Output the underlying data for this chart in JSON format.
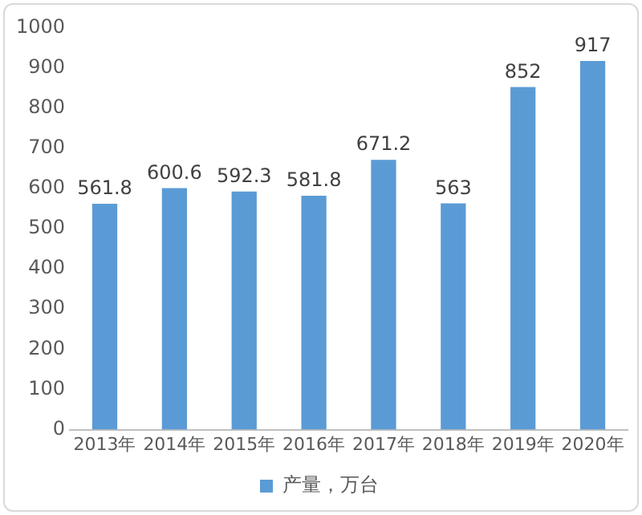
{
  "chart_data": {
    "type": "bar",
    "categories": [
      "2013年",
      "2014年",
      "2015年",
      "2016年",
      "2017年",
      "2018年",
      "2019年",
      "2020年"
    ],
    "series": [
      {
        "name": "产量，万台",
        "color": "#5b9bd5",
        "values": [
          561.8,
          600.6,
          592.3,
          581.8,
          671.2,
          563,
          852,
          917
        ]
      }
    ],
    "ylim": [
      0,
      1000
    ],
    "yticks": [
      0,
      100,
      200,
      300,
      400,
      500,
      600,
      700,
      800,
      900,
      1000
    ],
    "grid": false,
    "legend": "bottom",
    "data_labels": true
  }
}
